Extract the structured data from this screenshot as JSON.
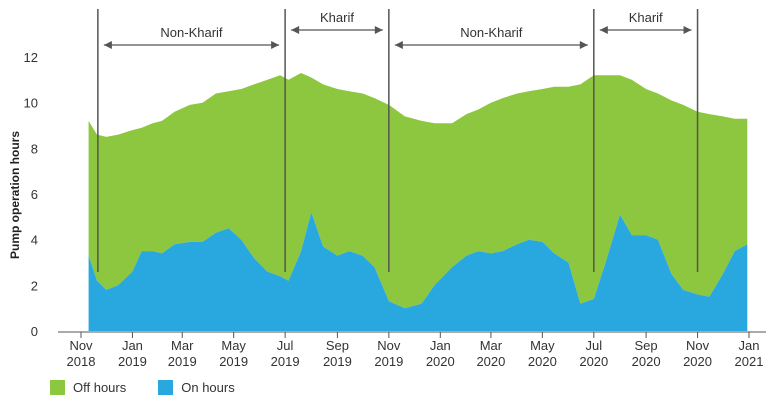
{
  "chart_data": {
    "type": "area",
    "ylabel": "Pump operation hours",
    "ylim": [
      0,
      12
    ],
    "yticks": [
      "0",
      "2",
      "4",
      "6",
      "8",
      "10",
      "12"
    ],
    "xlim": [
      "2018-11-01",
      "2021-01-01"
    ],
    "xticks": [
      {
        "date": "2018-11-01",
        "line1": "Nov",
        "line2": "2018"
      },
      {
        "date": "2019-01-01",
        "line1": "Jan",
        "line2": "2019"
      },
      {
        "date": "2019-03-01",
        "line1": "Mar",
        "line2": "2019"
      },
      {
        "date": "2019-05-01",
        "line1": "May",
        "line2": "2019"
      },
      {
        "date": "2019-07-01",
        "line1": "Jul",
        "line2": "2019"
      },
      {
        "date": "2019-09-01",
        "line1": "Sep",
        "line2": "2019"
      },
      {
        "date": "2019-11-01",
        "line1": "Nov",
        "line2": "2019"
      },
      {
        "date": "2020-01-01",
        "line1": "Jan",
        "line2": "2020"
      },
      {
        "date": "2020-03-01",
        "line1": "Mar",
        "line2": "2020"
      },
      {
        "date": "2020-05-01",
        "line1": "May",
        "line2": "2020"
      },
      {
        "date": "2020-07-01",
        "line1": "Jul",
        "line2": "2020"
      },
      {
        "date": "2020-09-01",
        "line1": "Sep",
        "line2": "2020"
      },
      {
        "date": "2020-11-01",
        "line1": "Nov",
        "line2": "2020"
      },
      {
        "date": "2021-01-01",
        "line1": "Jan",
        "line2": "2021"
      }
    ],
    "stacked": true,
    "colors": {
      "off": "#8dc63f",
      "on": "#29a8e0"
    },
    "series": [
      {
        "name": "On hours",
        "points": [
          [
            "2018-11-10",
            3.3
          ],
          [
            "2018-11-20",
            2.2
          ],
          [
            "2018-12-01",
            1.8
          ],
          [
            "2018-12-15",
            2.0
          ],
          [
            "2019-01-01",
            2.6
          ],
          [
            "2019-01-12",
            3.5
          ],
          [
            "2019-01-25",
            3.5
          ],
          [
            "2019-02-05",
            3.4
          ],
          [
            "2019-02-20",
            3.8
          ],
          [
            "2019-03-10",
            3.9
          ],
          [
            "2019-03-25",
            3.9
          ],
          [
            "2019-04-10",
            4.3
          ],
          [
            "2019-04-25",
            4.5
          ],
          [
            "2019-05-10",
            4.0
          ],
          [
            "2019-05-25",
            3.2
          ],
          [
            "2019-06-10",
            2.6
          ],
          [
            "2019-06-25",
            2.4
          ],
          [
            "2019-07-05",
            2.2
          ],
          [
            "2019-07-20",
            3.5
          ],
          [
            "2019-08-01",
            5.2
          ],
          [
            "2019-08-15",
            3.7
          ],
          [
            "2019-09-01",
            3.3
          ],
          [
            "2019-09-15",
            3.5
          ],
          [
            "2019-10-01",
            3.3
          ],
          [
            "2019-10-15",
            2.8
          ],
          [
            "2019-11-01",
            1.3
          ],
          [
            "2019-11-20",
            1.0
          ],
          [
            "2019-12-10",
            1.2
          ],
          [
            "2019-12-25",
            2.0
          ],
          [
            "2020-01-15",
            2.8
          ],
          [
            "2020-02-01",
            3.3
          ],
          [
            "2020-02-15",
            3.5
          ],
          [
            "2020-03-01",
            3.4
          ],
          [
            "2020-03-15",
            3.5
          ],
          [
            "2020-04-01",
            3.8
          ],
          [
            "2020-04-15",
            4.0
          ],
          [
            "2020-05-01",
            3.9
          ],
          [
            "2020-05-15",
            3.4
          ],
          [
            "2020-06-01",
            3.0
          ],
          [
            "2020-06-15",
            1.2
          ],
          [
            "2020-07-01",
            1.4
          ],
          [
            "2020-07-15",
            3.0
          ],
          [
            "2020-08-01",
            5.1
          ],
          [
            "2020-08-15",
            4.2
          ],
          [
            "2020-09-01",
            4.2
          ],
          [
            "2020-09-15",
            4.0
          ],
          [
            "2020-10-01",
            2.5
          ],
          [
            "2020-10-15",
            1.8
          ],
          [
            "2020-11-01",
            1.6
          ],
          [
            "2020-11-15",
            1.5
          ],
          [
            "2020-12-01",
            2.5
          ],
          [
            "2020-12-15",
            3.5
          ],
          [
            "2020-12-30",
            3.8
          ]
        ]
      },
      {
        "name": "Off hours",
        "points": [
          [
            "2018-11-10",
            5.9
          ],
          [
            "2018-11-20",
            6.4
          ],
          [
            "2018-12-01",
            6.7
          ],
          [
            "2018-12-15",
            6.6
          ],
          [
            "2019-01-01",
            6.2
          ],
          [
            "2019-01-12",
            5.4
          ],
          [
            "2019-01-25",
            5.6
          ],
          [
            "2019-02-05",
            5.8
          ],
          [
            "2019-02-20",
            5.8
          ],
          [
            "2019-03-10",
            6.0
          ],
          [
            "2019-03-25",
            6.1
          ],
          [
            "2019-04-10",
            6.1
          ],
          [
            "2019-04-25",
            6.0
          ],
          [
            "2019-05-10",
            6.6
          ],
          [
            "2019-05-25",
            7.6
          ],
          [
            "2019-06-10",
            8.4
          ],
          [
            "2019-06-25",
            8.8
          ],
          [
            "2019-07-05",
            8.8
          ],
          [
            "2019-07-20",
            7.8
          ],
          [
            "2019-08-01",
            5.9
          ],
          [
            "2019-08-15",
            7.1
          ],
          [
            "2019-09-01",
            7.3
          ],
          [
            "2019-09-15",
            7.0
          ],
          [
            "2019-10-01",
            7.1
          ],
          [
            "2019-10-15",
            7.4
          ],
          [
            "2019-11-01",
            8.6
          ],
          [
            "2019-11-20",
            8.4
          ],
          [
            "2019-12-10",
            8.0
          ],
          [
            "2019-12-25",
            7.1
          ],
          [
            "2020-01-15",
            6.3
          ],
          [
            "2020-02-01",
            6.2
          ],
          [
            "2020-02-15",
            6.2
          ],
          [
            "2020-03-01",
            6.6
          ],
          [
            "2020-03-15",
            6.7
          ],
          [
            "2020-04-01",
            6.6
          ],
          [
            "2020-04-15",
            6.5
          ],
          [
            "2020-05-01",
            6.7
          ],
          [
            "2020-05-15",
            7.3
          ],
          [
            "2020-06-01",
            7.7
          ],
          [
            "2020-06-15",
            9.6
          ],
          [
            "2020-07-01",
            9.8
          ],
          [
            "2020-07-15",
            8.2
          ],
          [
            "2020-08-01",
            6.1
          ],
          [
            "2020-08-15",
            6.8
          ],
          [
            "2020-09-01",
            6.4
          ],
          [
            "2020-09-15",
            6.4
          ],
          [
            "2020-10-01",
            7.6
          ],
          [
            "2020-10-15",
            8.1
          ],
          [
            "2020-11-01",
            8.0
          ],
          [
            "2020-11-15",
            8.0
          ],
          [
            "2020-12-01",
            6.9
          ],
          [
            "2020-12-15",
            5.8
          ],
          [
            "2020-12-30",
            5.5
          ]
        ]
      }
    ],
    "period_boundaries": [
      "2018-11-21",
      "2019-07-01",
      "2019-11-01",
      "2020-07-01",
      "2020-11-01"
    ],
    "annotations": [
      {
        "text": "Non-Kharif",
        "start": "2018-11-21",
        "end": "2019-07-01"
      },
      {
        "text": "Kharif",
        "start": "2019-07-01",
        "end": "2019-11-01"
      },
      {
        "text": "Non-Kharif",
        "start": "2019-11-01",
        "end": "2020-07-01"
      },
      {
        "text": "Kharif",
        "start": "2020-07-01",
        "end": "2020-11-01"
      }
    ],
    "legend": {
      "placement": "bottom-left",
      "items": [
        {
          "label": "Off hours",
          "color": "#8dc63f"
        },
        {
          "label": "On hours",
          "color": "#29a8e0"
        }
      ]
    }
  }
}
